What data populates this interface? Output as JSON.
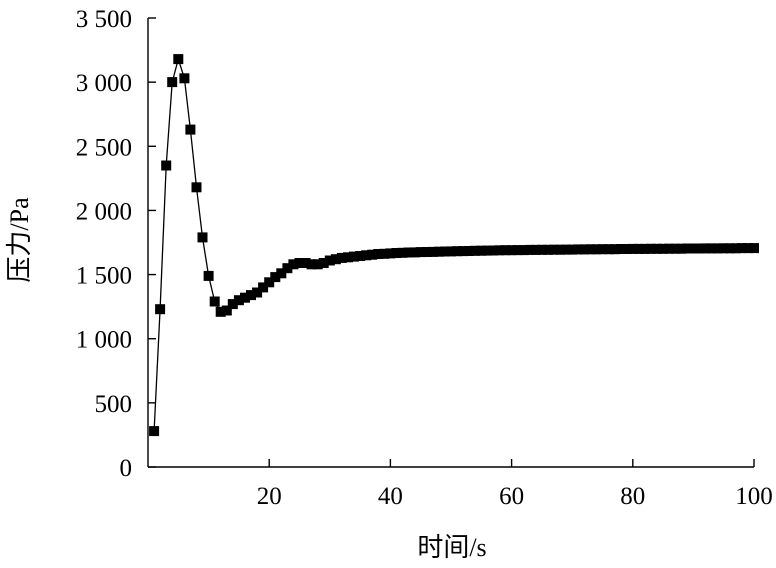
{
  "chart_data": {
    "type": "line",
    "title": "",
    "xlabel": "时间/s",
    "ylabel": "压力/Pa",
    "xlim": [
      0,
      100
    ],
    "ylim": [
      0,
      3500
    ],
    "x_ticks": [
      20,
      40,
      60,
      80,
      100
    ],
    "x_tick_labels": [
      "20",
      "40",
      "60",
      "80",
      "100"
    ],
    "y_ticks": [
      0,
      500,
      1000,
      1500,
      2000,
      2500,
      3000,
      3500
    ],
    "y_tick_labels": [
      "0",
      "500",
      "1 000",
      "1 500",
      "2 000",
      "2 500",
      "3 000",
      "3 500"
    ],
    "grid": false,
    "legend": "none",
    "marker": "square",
    "color": "#000000",
    "series": [
      {
        "x": [
          1,
          2,
          3,
          4,
          5,
          6,
          7,
          8,
          9,
          10,
          11,
          12,
          13,
          14,
          15,
          16,
          17,
          18,
          19,
          20,
          21,
          22,
          23,
          24,
          25,
          26,
          27,
          28,
          29,
          30,
          31,
          32,
          33,
          34,
          35,
          36,
          37,
          38,
          39,
          40,
          41,
          42,
          43,
          44,
          45,
          46,
          47,
          48,
          49,
          50,
          51,
          52,
          53,
          54,
          55,
          56,
          57,
          58,
          59,
          60,
          61,
          62,
          63,
          64,
          65,
          66,
          67,
          68,
          69,
          70,
          71,
          72,
          73,
          74,
          75,
          76,
          77,
          78,
          79,
          80,
          81,
          82,
          83,
          84,
          85,
          86,
          87,
          88,
          89,
          90,
          91,
          92,
          93,
          94,
          95,
          96,
          97,
          98,
          99,
          100
        ],
        "values": [
          280,
          1230,
          2350,
          3000,
          3180,
          3030,
          2630,
          2180,
          1790,
          1490,
          1290,
          1210,
          1220,
          1270,
          1300,
          1320,
          1340,
          1360,
          1400,
          1440,
          1480,
          1510,
          1550,
          1580,
          1590,
          1590,
          1580,
          1580,
          1590,
          1610,
          1620,
          1630,
          1635,
          1640,
          1645,
          1650,
          1655,
          1660,
          1662,
          1665,
          1668,
          1670,
          1672,
          1673,
          1675,
          1676,
          1677,
          1678,
          1680,
          1681,
          1682,
          1683,
          1684,
          1685,
          1686,
          1687,
          1688,
          1689,
          1690,
          1690,
          1691,
          1691,
          1692,
          1692,
          1693,
          1693,
          1694,
          1694,
          1695,
          1695,
          1696,
          1696,
          1697,
          1697,
          1698,
          1698,
          1698,
          1699,
          1699,
          1700,
          1700,
          1700,
          1701,
          1701,
          1701,
          1702,
          1702,
          1702,
          1703,
          1703,
          1703,
          1704,
          1704,
          1704,
          1705,
          1705,
          1705,
          1706,
          1706,
          1706
        ]
      }
    ]
  }
}
